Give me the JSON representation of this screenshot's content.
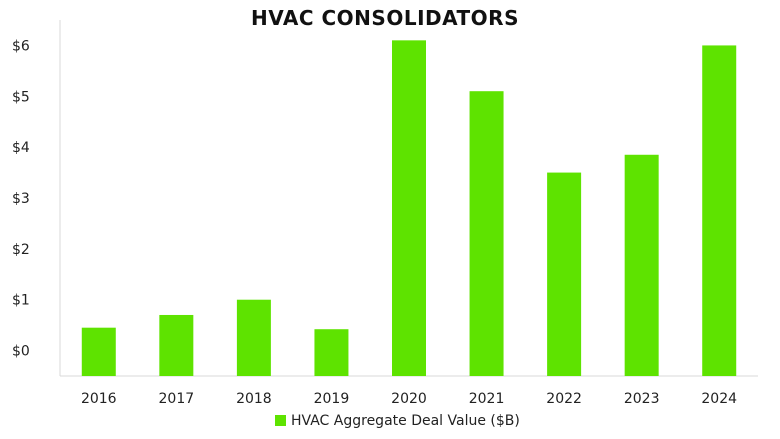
{
  "chart_data": {
    "type": "bar",
    "title": "HVAC CONSOLIDATORS",
    "categories": [
      "2016",
      "2017",
      "2018",
      "2019",
      "2020",
      "2021",
      "2022",
      "2023",
      "2024"
    ],
    "series": [
      {
        "name": "HVAC Aggregate Deal Value ($B)",
        "values": [
          0.45,
          0.7,
          1.0,
          0.42,
          6.1,
          5.1,
          3.5,
          3.85,
          6.0
        ],
        "color": "#5ee300"
      }
    ],
    "y_ticks": [
      "$0",
      "$1",
      "$2",
      "$3",
      "$4",
      "$5",
      "$6"
    ],
    "ylim": [
      -0.5,
      6.5
    ],
    "grid": false,
    "legend_position": "bottom"
  }
}
